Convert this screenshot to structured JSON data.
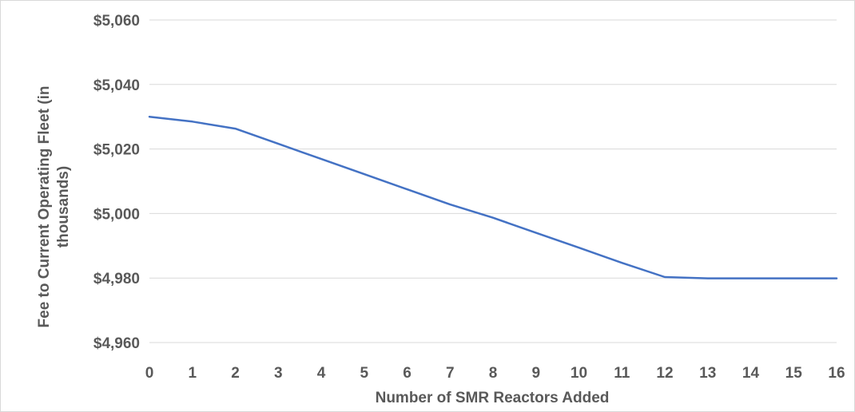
{
  "chart_data": {
    "type": "line",
    "title": "",
    "xlabel": "Number of SMR Reactors Added",
    "ylabel_line1": "Fee to Current Operating Fleet (in",
    "ylabel_line2": "thousands)",
    "x": [
      0,
      1,
      2,
      3,
      4,
      5,
      6,
      7,
      8,
      9,
      10,
      11,
      12,
      13,
      14,
      15,
      16
    ],
    "x_tick_labels": [
      "0",
      "1",
      "2",
      "3",
      "4",
      "5",
      "6",
      "7",
      "8",
      "9",
      "10",
      "11",
      "12",
      "13",
      "14",
      "15",
      "16"
    ],
    "y_tick_values": [
      4960,
      4980,
      5000,
      5020,
      5040,
      5060
    ],
    "y_tick_labels": [
      "$4,960",
      "$4,980",
      "$5,000",
      "$5,020",
      "$5,040",
      "$5,060"
    ],
    "ylim": [
      4960,
      5060
    ],
    "xlim": [
      0,
      16
    ],
    "grid": "horizontal",
    "legend": "none",
    "series": [
      {
        "color": "#4472c4",
        "values": [
          5030,
          5028.5,
          5026.3,
          5021.6,
          5016.9,
          5012.2,
          5007.5,
          5002.8,
          4998.7,
          4994,
          4989.4,
          4984.7,
          4980.3,
          4979.9,
          4979.9,
          4979.9,
          4979.9
        ]
      }
    ]
  }
}
